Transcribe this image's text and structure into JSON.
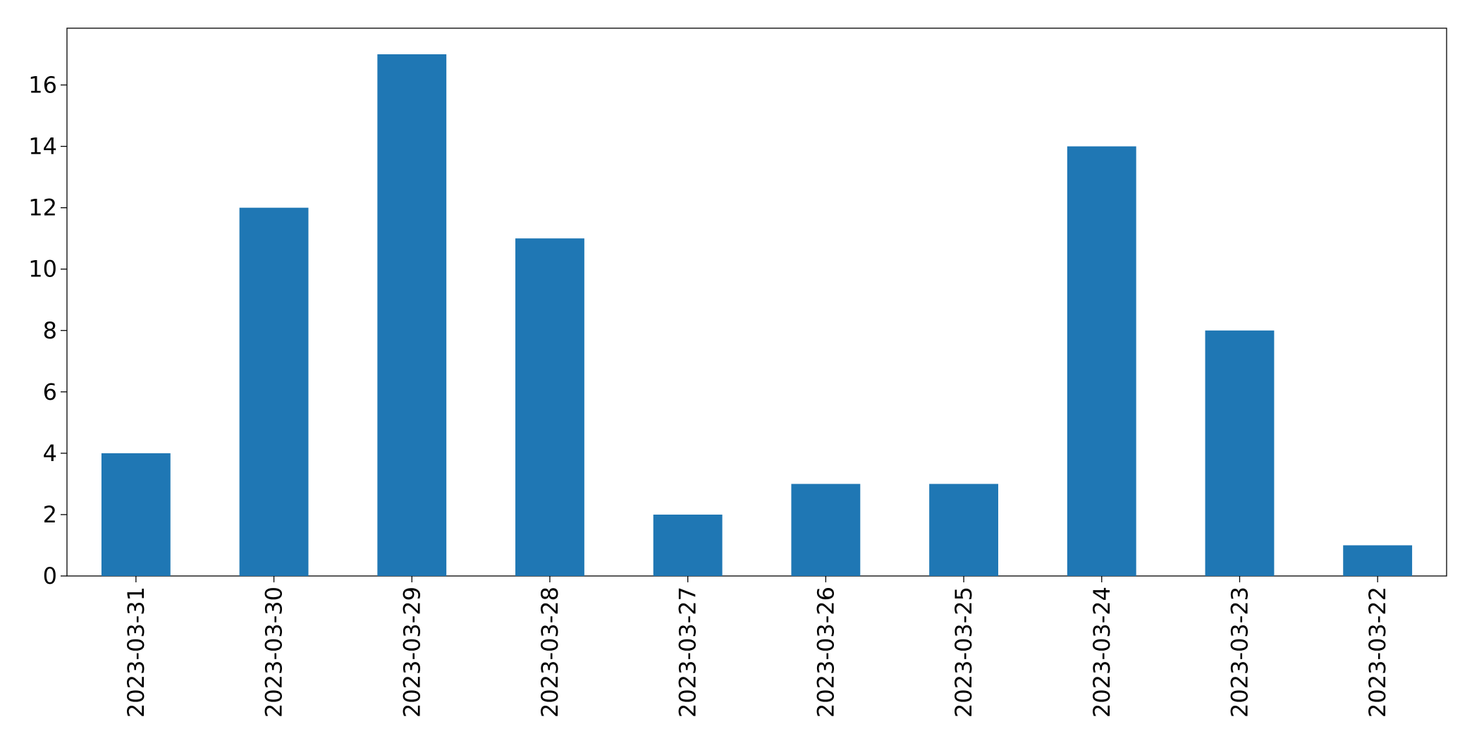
{
  "chart_data": {
    "type": "bar",
    "categories": [
      "2023-03-31",
      "2023-03-30",
      "2023-03-29",
      "2023-03-28",
      "2023-03-27",
      "2023-03-26",
      "2023-03-25",
      "2023-03-24",
      "2023-03-23",
      "2023-03-22"
    ],
    "values": [
      4,
      12,
      17,
      11,
      2,
      3,
      3,
      14,
      8,
      1
    ],
    "color": "#1f77b4",
    "ylim": [
      0,
      17.85
    ],
    "yticks": [
      0,
      2,
      4,
      6,
      8,
      10,
      12,
      14,
      16
    ],
    "grid": false
  }
}
